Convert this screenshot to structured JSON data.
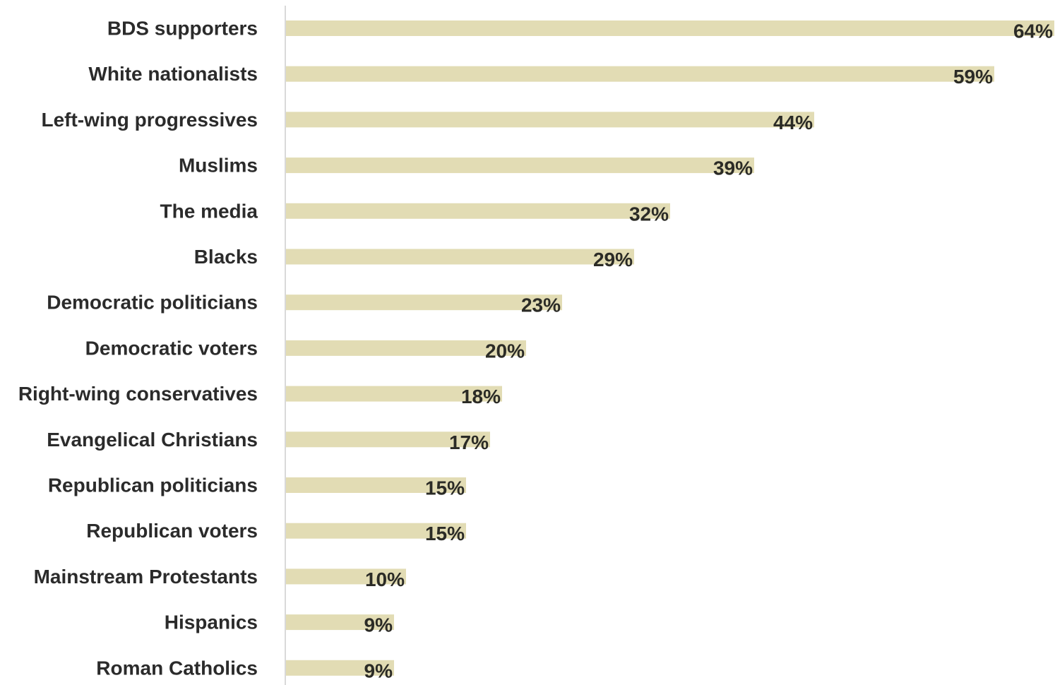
{
  "chart_data": {
    "type": "bar",
    "orientation": "horizontal",
    "categories": [
      "BDS supporters",
      "White nationalists",
      "Left-wing progressives",
      "Muslims",
      "The media",
      "Blacks",
      "Democratic politicians",
      "Democratic voters",
      "Right-wing conservatives",
      "Evangelical Christians",
      "Republican politicians",
      "Republican voters",
      "Mainstream Protestants",
      "Hispanics",
      "Roman Catholics"
    ],
    "values": [
      64,
      59,
      44,
      39,
      32,
      29,
      23,
      20,
      18,
      17,
      15,
      15,
      10,
      9,
      9
    ],
    "data_labels": [
      "64%",
      "59%",
      "44%",
      "39%",
      "32%",
      "29%",
      "23%",
      "20%",
      "18%",
      "17%",
      "15%",
      "15%",
      "10%",
      "9%",
      "9%"
    ],
    "title": "",
    "xlabel": "",
    "ylabel": "",
    "xlim": [
      0,
      64
    ],
    "grid": false,
    "legend": "none",
    "colors": {
      "bar": "#e2dcb4",
      "label_text": "#2b2b2b",
      "value_text": "#2b2b26",
      "axis": "#d9d9d9"
    }
  }
}
